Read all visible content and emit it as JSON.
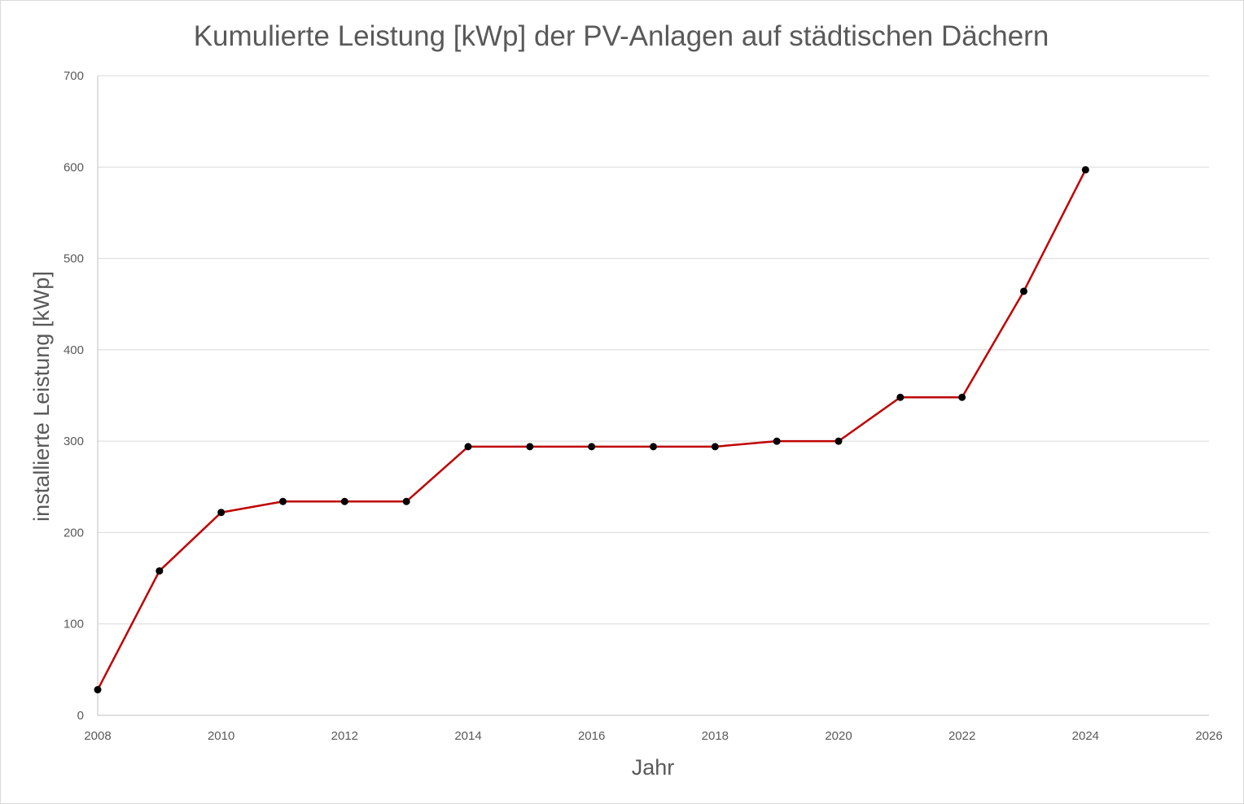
{
  "chart_data": {
    "type": "line",
    "title": "Kumulierte Leistung [kWp] der PV-Anlagen auf städtischen Dächern",
    "xlabel": "Jahr",
    "ylabel": "installierte Leistung [kWp]",
    "xlim": [
      2008,
      2026
    ],
    "ylim": [
      0,
      700
    ],
    "xticks": [
      2008,
      2010,
      2012,
      2014,
      2016,
      2018,
      2020,
      2022,
      2024,
      2026
    ],
    "yticks": [
      0,
      100,
      200,
      300,
      400,
      500,
      600,
      700
    ],
    "grid": "horizontal",
    "legend": "none",
    "series": [
      {
        "name": "Kumulierte Leistung",
        "color": "#C00000",
        "marker_color": "#000000",
        "x": [
          2008,
          2009,
          2010,
          2011,
          2012,
          2013,
          2014,
          2015,
          2016,
          2017,
          2018,
          2019,
          2020,
          2021,
          2022,
          2023,
          2024
        ],
        "values": [
          28,
          158,
          222,
          234,
          234,
          234,
          294,
          294,
          294,
          294,
          294,
          300,
          300,
          348,
          348,
          464,
          597
        ]
      }
    ]
  }
}
